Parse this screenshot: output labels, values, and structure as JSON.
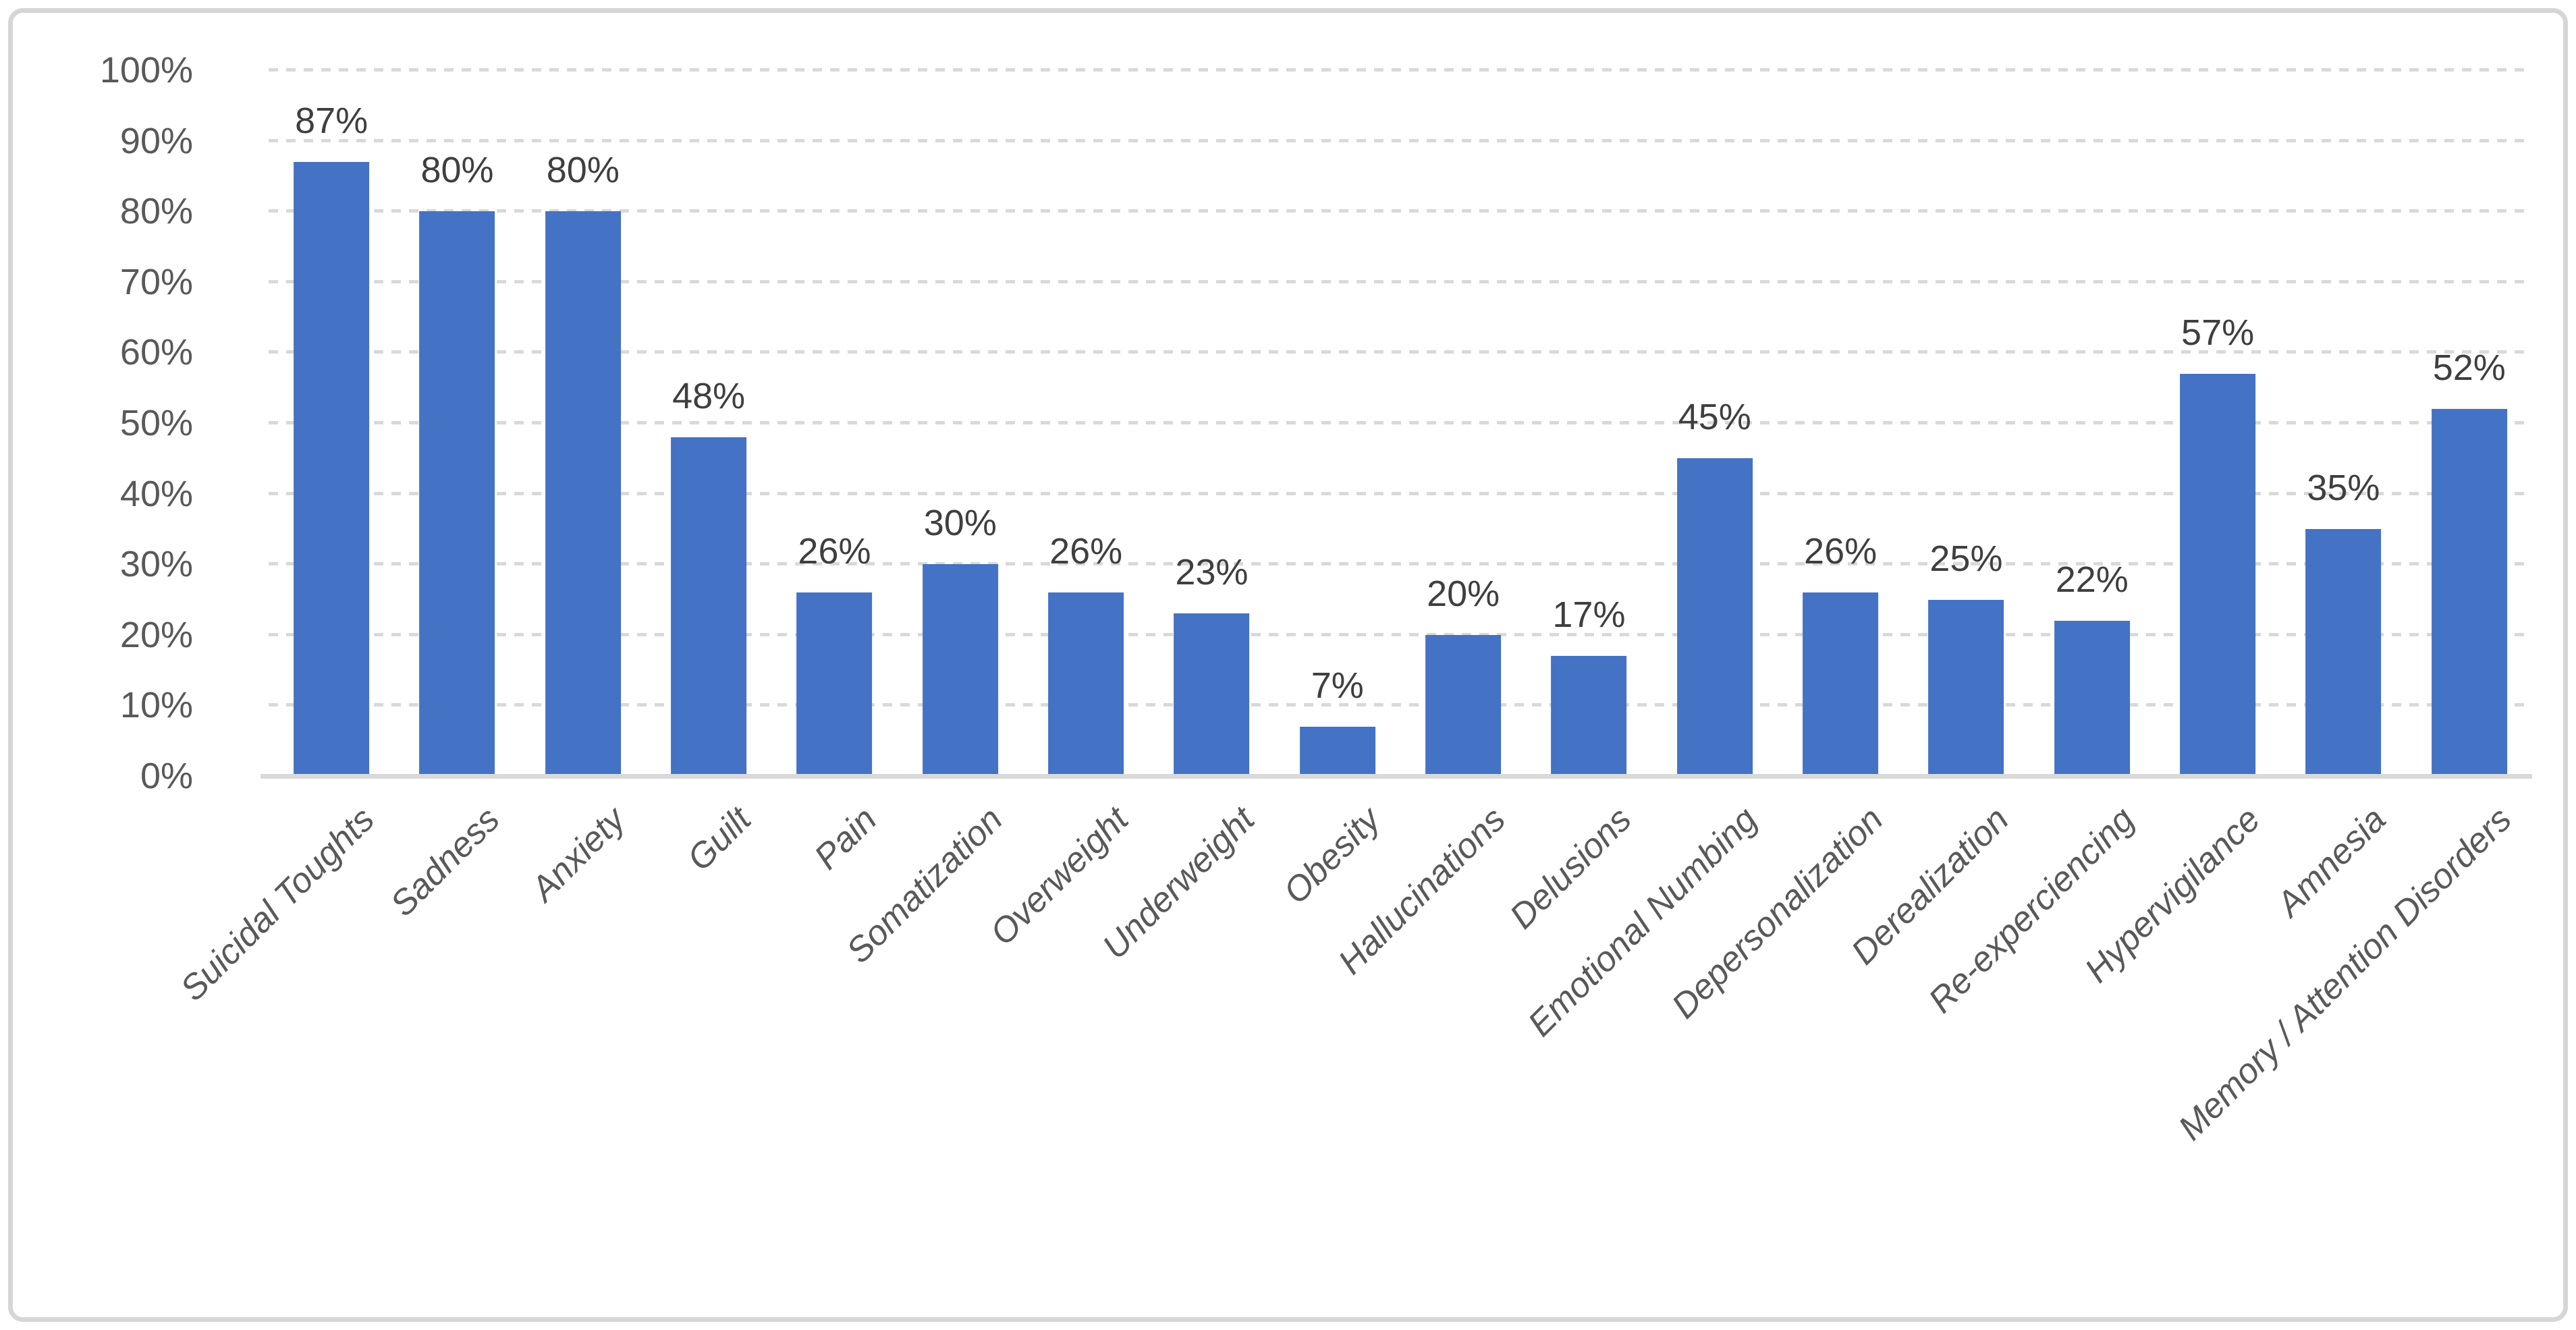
{
  "chart_data": {
    "type": "bar",
    "title": "",
    "categories": [
      "Suicidal Toughts",
      "Sadness",
      "Anxiety",
      "Guilt",
      "Pain",
      "Somatization",
      "Overweight",
      "Underweight",
      "Obesity",
      "Hallucinations",
      "Delusions",
      "Emotional Numbing",
      "Depersonalization",
      "Derealization",
      "Re-experciencing",
      "Hypervigilance",
      "Amnesia",
      "Memory / Attention Disorders"
    ],
    "values": [
      87,
      80,
      80,
      48,
      26,
      30,
      26,
      23,
      7,
      20,
      17,
      45,
      26,
      25,
      22,
      57,
      35,
      52
    ],
    "value_labels": [
      "87%",
      "80%",
      "80%",
      "48%",
      "26%",
      "30%",
      "26%",
      "23%",
      "7%",
      "20%",
      "17%",
      "45%",
      "26%",
      "25%",
      "22%",
      "57%",
      "35%",
      "52%"
    ],
    "xlabel": "",
    "ylabel": "",
    "ylim": [
      0,
      100
    ],
    "ytick_values": [
      0,
      10,
      20,
      30,
      40,
      50,
      60,
      70,
      80,
      90,
      100
    ],
    "ytick_labels": [
      "0%",
      "10%",
      "20%",
      "30%",
      "40%",
      "50%",
      "60%",
      "70%",
      "80%",
      "90%",
      "100%"
    ],
    "grid": "horizontal-dashed",
    "legend": "none",
    "bar_color": "#4472C4",
    "gridline_color": "#D9D9D9",
    "axis_line_color": "#D9D9D9",
    "tick_label_color": "#595959",
    "data_label_color": "#3F3F3F",
    "category_label_style": "italic, rotated 45deg",
    "frame_border_color": "#D6D6D6"
  }
}
